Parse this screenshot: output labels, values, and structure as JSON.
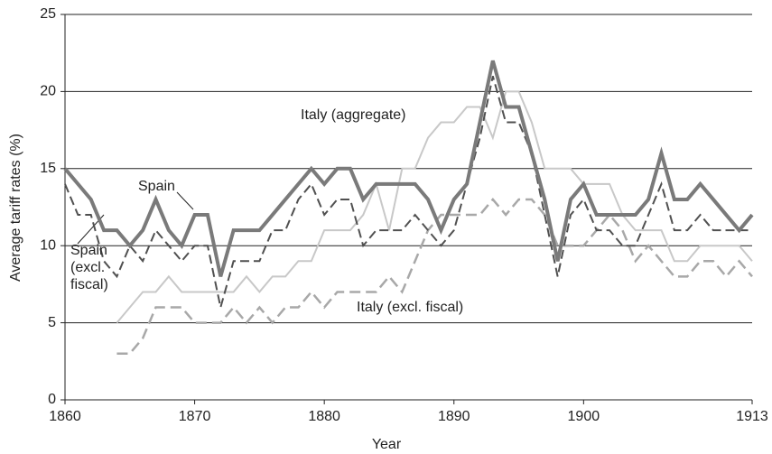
{
  "chart_data": {
    "type": "line",
    "x_label": "Year",
    "y_label": "Average tariff rates (%)",
    "x": [
      1860,
      1861,
      1862,
      1863,
      1864,
      1865,
      1866,
      1867,
      1868,
      1869,
      1870,
      1871,
      1872,
      1873,
      1874,
      1875,
      1876,
      1877,
      1878,
      1879,
      1880,
      1881,
      1882,
      1883,
      1884,
      1885,
      1886,
      1887,
      1888,
      1889,
      1890,
      1891,
      1892,
      1893,
      1894,
      1895,
      1896,
      1897,
      1898,
      1899,
      1900,
      1901,
      1902,
      1903,
      1904,
      1905,
      1906,
      1907,
      1908,
      1909,
      1910,
      1911,
      1912,
      1913
    ],
    "xlim": [
      1860,
      1913
    ],
    "xticks": [
      1860,
      1870,
      1880,
      1890,
      1900,
      1913
    ],
    "ylim": [
      0,
      25
    ],
    "yticks": [
      0,
      5,
      10,
      15,
      20,
      25
    ],
    "grid": true,
    "series": [
      {
        "name": "Spain",
        "color": "#7a7a7a",
        "values": [
          15,
          14,
          13,
          11,
          11,
          10,
          11,
          13,
          11,
          10,
          12,
          12,
          8,
          11,
          11,
          11,
          12,
          13,
          14,
          15,
          14,
          15,
          15,
          13,
          14,
          14,
          14,
          14,
          13,
          11,
          13,
          14,
          18,
          22,
          19,
          19,
          16,
          13,
          9,
          13,
          14,
          12,
          12,
          12,
          12,
          13,
          16,
          13,
          13,
          14,
          13,
          12,
          11,
          12
        ]
      },
      {
        "name": "Spain (excl. fiscal)",
        "color": "#505050",
        "values": [
          14,
          12,
          12,
          9,
          8,
          10,
          9,
          11,
          10,
          9,
          10,
          10,
          6,
          9,
          9,
          9,
          11,
          11,
          13,
          14,
          12,
          13,
          13,
          10,
          11,
          11,
          11,
          12,
          11,
          10,
          11,
          14,
          17,
          21,
          18,
          18,
          16,
          12,
          8,
          12,
          13,
          11,
          11,
          10,
          10,
          12,
          14,
          11,
          11,
          12,
          11,
          11,
          11,
          11
        ]
      },
      {
        "name": "Italy (aggregate)",
        "color": "#c8c8c8",
        "values": [
          null,
          null,
          null,
          null,
          5,
          6,
          7,
          7,
          8,
          7,
          7,
          7,
          7,
          7,
          8,
          7,
          8,
          8,
          9,
          9,
          11,
          11,
          11,
          12,
          14,
          11,
          15,
          15,
          17,
          18,
          18,
          19,
          19,
          17,
          20,
          20,
          18,
          15,
          15,
          15,
          14,
          14,
          14,
          12,
          11,
          11,
          11,
          9,
          9,
          10,
          10,
          10,
          10,
          9
        ]
      },
      {
        "name": "Italy (excl. fiscal)",
        "color": "#a8a8a8",
        "values": [
          null,
          null,
          null,
          null,
          3,
          3,
          4,
          6,
          6,
          6,
          5,
          5,
          5,
          6,
          5,
          6,
          5,
          6,
          6,
          7,
          6,
          7,
          7,
          7,
          7,
          8,
          7,
          9,
          11,
          12,
          12,
          12,
          12,
          13,
          12,
          13,
          13,
          12,
          10,
          10,
          10,
          11,
          12,
          11,
          9,
          10,
          9,
          8,
          8,
          9,
          9,
          8,
          9,
          8
        ]
      }
    ]
  }
}
